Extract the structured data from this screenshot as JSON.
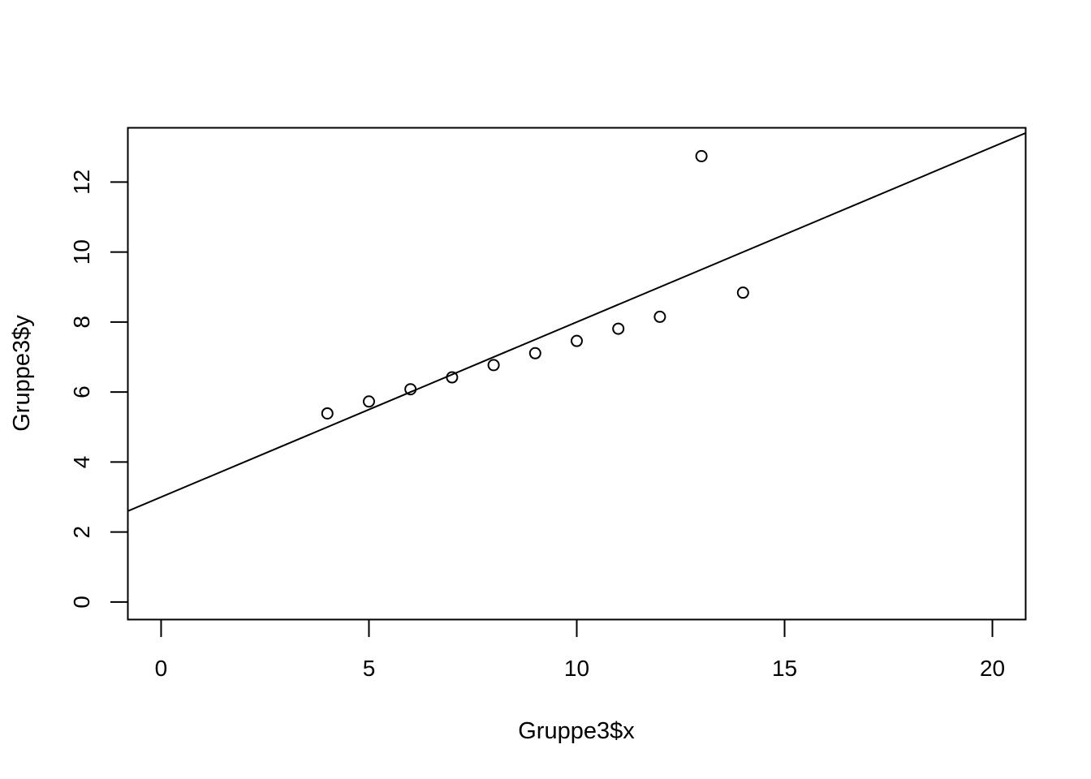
{
  "chart_data": {
    "type": "scatter",
    "title": "",
    "xlabel": "Gruppe3$x",
    "ylabel": "Gruppe3$y",
    "xlim": [
      -0.8,
      20.8
    ],
    "ylim": [
      -0.5,
      13.55
    ],
    "x_ticks": [
      0,
      5,
      10,
      15,
      20
    ],
    "y_ticks": [
      0,
      2,
      4,
      6,
      8,
      10,
      12
    ],
    "x_tick_labels": [
      "0",
      "5",
      "10",
      "15",
      "20"
    ],
    "y_tick_labels": [
      "0",
      "2",
      "4",
      "6",
      "8",
      "10",
      "12"
    ],
    "grid": false,
    "points": [
      {
        "x": 4,
        "y": 5.39
      },
      {
        "x": 5,
        "y": 5.73
      },
      {
        "x": 6,
        "y": 6.08
      },
      {
        "x": 7,
        "y": 6.42
      },
      {
        "x": 8,
        "y": 6.77
      },
      {
        "x": 9,
        "y": 7.11
      },
      {
        "x": 10,
        "y": 7.46
      },
      {
        "x": 11,
        "y": 7.81
      },
      {
        "x": 12,
        "y": 8.15
      },
      {
        "x": 13,
        "y": 12.74
      },
      {
        "x": 14,
        "y": 8.84
      }
    ],
    "fit_line": {
      "intercept": 3.0,
      "slope": 0.5
    },
    "marker": "open-circle",
    "colors": {
      "points": "#000000",
      "line": "#000000",
      "axes": "#000000"
    }
  }
}
